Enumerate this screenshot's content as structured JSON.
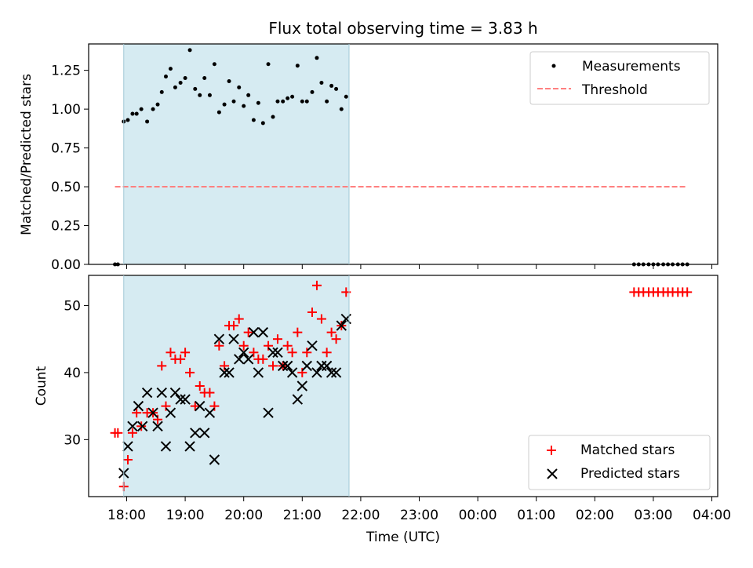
{
  "chart_data": [
    {
      "panel": "top",
      "type": "scatter",
      "title": "Flux total observing time = 3.83 h",
      "xlabel": "",
      "ylabel": "Matched/Predicted stars",
      "ylim": [
        0.0,
        1.42
      ],
      "yticks": [
        0.0,
        0.25,
        0.5,
        0.75,
        1.0,
        1.25
      ],
      "ytick_labels": [
        "0.00",
        "0.25",
        "0.50",
        "0.75",
        "1.00",
        "1.25"
      ],
      "grid": false,
      "legend": "top-right",
      "shaded_interval": {
        "x": [
          17.95,
          21.8
        ],
        "color": "#add8e6"
      },
      "threshold": {
        "name": "Threshold",
        "value": 0.5,
        "x": [
          17.8,
          27.55
        ],
        "color": "#ff8080",
        "style": "dashed"
      },
      "series": [
        {
          "name": "Measurements",
          "color": "#000000",
          "marker": "dot",
          "x": [
            17.8,
            17.85,
            17.95,
            18.02,
            18.1,
            18.17,
            18.25,
            18.35,
            18.45,
            18.53,
            18.6,
            18.67,
            18.75,
            18.83,
            18.92,
            19.0,
            19.08,
            19.17,
            19.25,
            19.33,
            19.42,
            19.5,
            19.58,
            19.67,
            19.75,
            19.83,
            19.92,
            20.0,
            20.08,
            20.17,
            20.25,
            20.33,
            20.42,
            20.5,
            20.58,
            20.67,
            20.75,
            20.83,
            20.92,
            21.0,
            21.08,
            21.17,
            21.25,
            21.33,
            21.42,
            21.5,
            21.58,
            21.67,
            21.75,
            26.67,
            26.75,
            26.83,
            26.92,
            27.0,
            27.08,
            27.17,
            27.25,
            27.33,
            27.42,
            27.5,
            27.58
          ],
          "y": [
            0.0,
            0.0,
            0.92,
            0.93,
            0.97,
            0.97,
            1.0,
            0.92,
            1.0,
            1.03,
            1.11,
            1.21,
            1.26,
            1.14,
            1.17,
            1.2,
            1.38,
            1.13,
            1.09,
            1.2,
            1.09,
            1.29,
            0.98,
            1.03,
            1.18,
            1.05,
            1.14,
            1.02,
            1.09,
            0.93,
            1.04,
            0.91,
            1.29,
            0.95,
            1.05,
            1.05,
            1.07,
            1.08,
            1.28,
            1.05,
            1.05,
            1.11,
            1.33,
            1.17,
            1.05,
            1.15,
            1.13,
            1.0,
            1.08,
            0.0,
            0.0,
            0.0,
            0.0,
            0.0,
            0.0,
            0.0,
            0.0,
            0.0,
            0.0,
            0.0,
            0.0
          ]
        }
      ]
    },
    {
      "panel": "bottom",
      "type": "scatter",
      "title": "",
      "xlabel": "Time (UTC)",
      "ylabel": "Count",
      "ylim": [
        21.5,
        54.5
      ],
      "yticks": [
        30,
        40,
        50
      ],
      "ytick_labels": [
        "30",
        "40",
        "50"
      ],
      "xlim": [
        17.35,
        28.1
      ],
      "xticks": [
        18,
        19,
        20,
        21,
        22,
        23,
        24,
        25,
        26,
        27,
        28
      ],
      "xtick_labels": [
        "18:00",
        "19:00",
        "20:00",
        "21:00",
        "22:00",
        "23:00",
        "00:00",
        "01:00",
        "02:00",
        "03:00",
        "04:00"
      ],
      "grid": false,
      "legend": "bottom-right",
      "shaded_interval": {
        "x": [
          17.95,
          21.8
        ],
        "color": "#add8e6"
      },
      "series": [
        {
          "name": "Matched stars",
          "color": "#ff0000",
          "marker": "plus",
          "x": [
            17.8,
            17.85,
            17.95,
            18.02,
            18.1,
            18.17,
            18.25,
            18.35,
            18.45,
            18.53,
            18.6,
            18.67,
            18.75,
            18.83,
            18.92,
            19.0,
            19.08,
            19.17,
            19.25,
            19.33,
            19.42,
            19.5,
            19.58,
            19.67,
            19.75,
            19.83,
            19.92,
            20.0,
            20.08,
            20.17,
            20.25,
            20.33,
            20.42,
            20.5,
            20.58,
            20.67,
            20.75,
            20.83,
            20.92,
            21.0,
            21.08,
            21.17,
            21.25,
            21.33,
            21.42,
            21.5,
            21.58,
            21.67,
            21.75,
            26.67,
            26.75,
            26.83,
            26.92,
            27.0,
            27.08,
            27.17,
            27.25,
            27.33,
            27.42,
            27.5,
            27.58
          ],
          "y": [
            31,
            31,
            23,
            27,
            31,
            34,
            32,
            34,
            34,
            33,
            41,
            35,
            43,
            42,
            42,
            43,
            40,
            35,
            38,
            37,
            37,
            35,
            44,
            41,
            47,
            47,
            48,
            44,
            46,
            43,
            42,
            42,
            44,
            41,
            45,
            41,
            44,
            43,
            46,
            40,
            43,
            49,
            53,
            48,
            43,
            46,
            45,
            47,
            52,
            52,
            52,
            52,
            52,
            52,
            52,
            52,
            52,
            52,
            52,
            52,
            52
          ]
        },
        {
          "name": "Predicted stars",
          "color": "#000000",
          "marker": "x",
          "x": [
            17.95,
            18.02,
            18.1,
            18.2,
            18.27,
            18.35,
            18.45,
            18.53,
            18.6,
            18.67,
            18.75,
            18.83,
            18.92,
            19.0,
            19.08,
            19.17,
            19.25,
            19.33,
            19.42,
            19.5,
            19.58,
            19.67,
            19.75,
            19.83,
            19.92,
            20.0,
            20.08,
            20.17,
            20.25,
            20.33,
            20.42,
            20.5,
            20.58,
            20.67,
            20.75,
            20.83,
            20.92,
            21.0,
            21.08,
            21.17,
            21.25,
            21.33,
            21.42,
            21.5,
            21.58,
            21.67,
            21.75
          ],
          "y": [
            25,
            29,
            32,
            35,
            32,
            37,
            34,
            32,
            37,
            29,
            34,
            37,
            36,
            36,
            29,
            31,
            35,
            31,
            34,
            27,
            45,
            40,
            40,
            45,
            42,
            43,
            42,
            46,
            40,
            46,
            34,
            43,
            43,
            41,
            41,
            40,
            36,
            38,
            41,
            44,
            40,
            41,
            41,
            40,
            40,
            47,
            48
          ]
        }
      ]
    }
  ]
}
